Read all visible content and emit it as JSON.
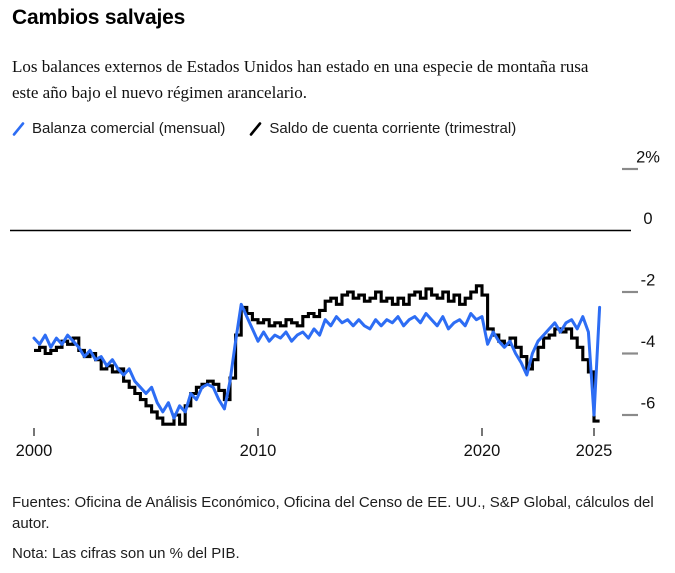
{
  "footer": {
    "sources": "Fuentes: Oficina de Análisis Económico, Oficina del Censo de EE. UU., S&P Global, cálculos del autor.",
    "note": "Nota: Las cifras son un % del PIB."
  },
  "chart_data": {
    "type": "line",
    "title": "Cambios salvajes",
    "subtitle": "Los balances externos de Estados Unidos han estado en una especie de montaña rusa este año bajo el nuevo régimen arancelario.",
    "unit_note": "% del PIB",
    "legend_position": "top",
    "grid": false,
    "x_axis": {
      "ticks": [
        2000,
        2010,
        2020,
        2025
      ],
      "labels": [
        "2000",
        "2010",
        "2020",
        "2025"
      ],
      "range": [
        2000,
        2025.75
      ]
    },
    "y_axis": {
      "side": "right",
      "ticks": [
        2,
        0,
        -2,
        -4,
        -6
      ],
      "labels": [
        "2%",
        "0",
        "-2",
        "-4",
        "-6"
      ],
      "range": [
        -6.8,
        2.4
      ],
      "zero_line": true
    },
    "series": [
      {
        "id": "trade-balance",
        "name": "Balanza comercial (mensual)",
        "color": "#2d6df4",
        "render": "line",
        "x_start": 2000,
        "x_step": 0.25,
        "values": [
          -3.5,
          -3.7,
          -3.4,
          -3.8,
          -3.5,
          -3.7,
          -3.4,
          -3.6,
          -3.8,
          -4.1,
          -3.9,
          -4.2,
          -4.1,
          -4.4,
          -4.2,
          -4.5,
          -4.7,
          -4.5,
          -4.9,
          -5.1,
          -5.3,
          -5.1,
          -5.6,
          -5.9,
          -5.6,
          -6.1,
          -5.7,
          -5.9,
          -5.3,
          -5.5,
          -5.1,
          -5.0,
          -5.1,
          -5.5,
          -5.8,
          -4.9,
          -3.6,
          -2.4,
          -2.8,
          -3.2,
          -3.6,
          -3.3,
          -3.6,
          -3.4,
          -3.5,
          -3.3,
          -3.6,
          -3.4,
          -3.3,
          -3.5,
          -3.2,
          -3.4,
          -2.9,
          -3.1,
          -2.8,
          -3.0,
          -2.9,
          -3.1,
          -2.9,
          -3.1,
          -3.2,
          -2.9,
          -3.1,
          -2.9,
          -3.0,
          -2.8,
          -3.1,
          -2.9,
          -2.8,
          -3.0,
          -2.7,
          -2.9,
          -3.1,
          -2.8,
          -3.2,
          -3.0,
          -2.9,
          -3.1,
          -2.7,
          -2.9,
          -2.8,
          -3.7,
          -3.3,
          -3.6,
          -3.8,
          -3.6,
          -4.0,
          -4.3,
          -4.7,
          -4.0,
          -3.6,
          -3.4,
          -3.2,
          -3.0,
          -3.3,
          -3.0,
          -2.9,
          -3.2,
          -2.8,
          -3.3,
          -6.0,
          -2.5
        ]
      },
      {
        "id": "current-account",
        "name": "Saldo de cuenta corriente (trimestral)",
        "color": "#000000",
        "render": "step",
        "x_start": 2000,
        "x_step": 0.25,
        "values": [
          -3.9,
          -3.8,
          -4.0,
          -3.9,
          -3.8,
          -3.6,
          -3.7,
          -3.5,
          -3.9,
          -4.1,
          -4.0,
          -4.2,
          -4.5,
          -4.4,
          -4.6,
          -4.5,
          -4.9,
          -5.1,
          -5.3,
          -5.5,
          -5.7,
          -5.9,
          -6.1,
          -6.3,
          -6.3,
          -6.0,
          -6.3,
          -5.7,
          -5.3,
          -5.1,
          -5.0,
          -4.9,
          -5.0,
          -5.2,
          -5.5,
          -4.8,
          -3.4,
          -2.5,
          -2.7,
          -2.9,
          -3.0,
          -2.9,
          -3.1,
          -3.0,
          -3.1,
          -2.9,
          -3.0,
          -3.1,
          -2.8,
          -2.7,
          -2.8,
          -2.6,
          -2.3,
          -2.2,
          -2.4,
          -2.1,
          -2.0,
          -2.2,
          -2.1,
          -2.3,
          -2.2,
          -2.0,
          -2.3,
          -2.2,
          -2.4,
          -2.2,
          -2.4,
          -2.1,
          -2.0,
          -2.2,
          -1.9,
          -2.1,
          -2.2,
          -2.0,
          -2.3,
          -2.1,
          -2.4,
          -2.2,
          -2.0,
          -1.8,
          -2.1,
          -3.2,
          -3.4,
          -3.6,
          -3.7,
          -3.5,
          -3.8,
          -4.1,
          -4.5,
          -4.2,
          -3.8,
          -3.5,
          -3.4,
          -3.2,
          -3.3,
          -3.2,
          -3.5,
          -3.8,
          -4.2,
          -4.6,
          -6.2,
          -6.2
        ]
      }
    ]
  }
}
